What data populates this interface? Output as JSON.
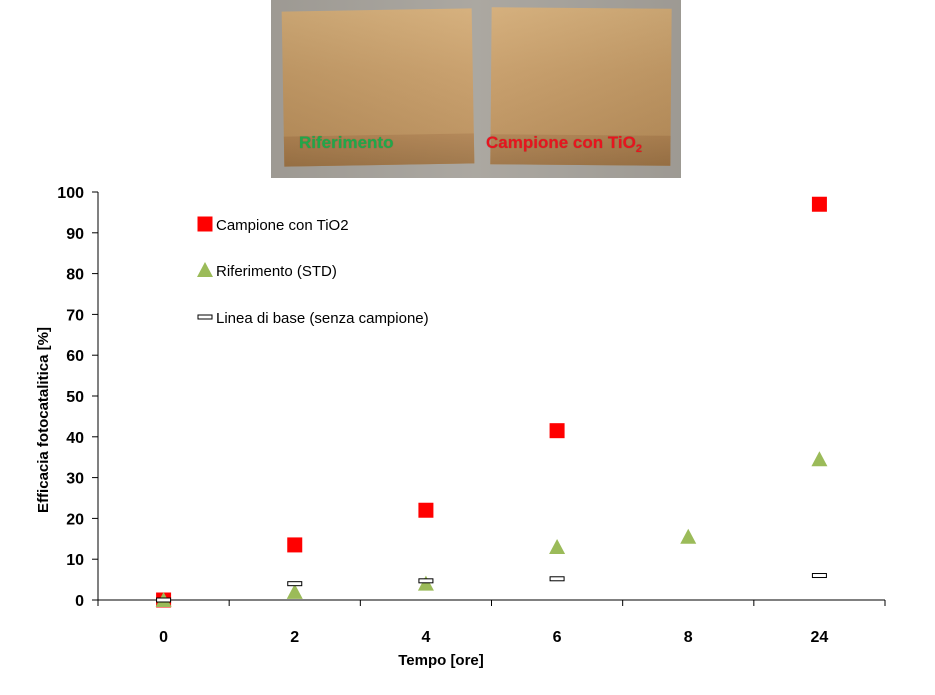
{
  "photo": {
    "label_reference": "Riferimento",
    "label_sample_main": "Campione con TiO",
    "label_sample_sub": "2",
    "label_reference_color": "#1fa84a",
    "label_sample_color": "#e8141e"
  },
  "chart_data": {
    "type": "scatter",
    "categories": [
      "0",
      "2",
      "4",
      "6",
      "8",
      "24"
    ],
    "ylabel": "Efficacia fotocatalitica [%]",
    "xlabel": "Tempo [ore]",
    "ylim": [
      0,
      100
    ],
    "yticks": [
      0,
      10,
      20,
      30,
      40,
      50,
      60,
      70,
      80,
      90,
      100
    ],
    "grid": false,
    "legend_position": "top-left",
    "series": [
      {
        "name": "Campione con TiO2",
        "marker": "square",
        "color": "#ff0000",
        "points": [
          {
            "x": "0",
            "y": 0
          },
          {
            "x": "2",
            "y": 13.5
          },
          {
            "x": "4",
            "y": 22
          },
          {
            "x": "6",
            "y": 41.5
          },
          {
            "x": "24",
            "y": 97
          }
        ]
      },
      {
        "name": "Riferimento (STD)",
        "marker": "triangle",
        "color": "#9bbb59",
        "points": [
          {
            "x": "0",
            "y": 0
          },
          {
            "x": "2",
            "y": 2
          },
          {
            "x": "4",
            "y": 4
          },
          {
            "x": "6",
            "y": 13
          },
          {
            "x": "8",
            "y": 15.5
          },
          {
            "x": "24",
            "y": 34.5
          }
        ]
      },
      {
        "name": "Linea di base (senza campione)",
        "marker": "dash",
        "color": "#ffffff",
        "points": [
          {
            "x": "0",
            "y": 0
          },
          {
            "x": "2",
            "y": 4
          },
          {
            "x": "4",
            "y": 4.7
          },
          {
            "x": "6",
            "y": 5.2
          },
          {
            "x": "24",
            "y": 6
          }
        ]
      }
    ]
  }
}
